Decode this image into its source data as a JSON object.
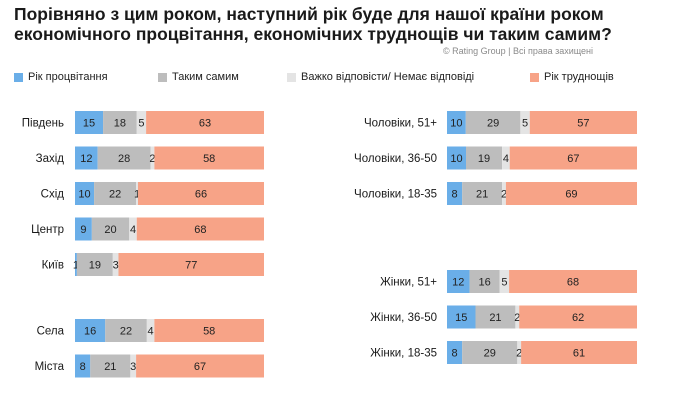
{
  "header": {
    "title": "Порівняно з цим роком, наступний рік буде для нашої країни роком економічного процвітання, економічних труднощів чи таким самим?",
    "credit": "© Rating Group | Всі права захищені"
  },
  "colors": {
    "prosperity": "#6aaee8",
    "same": "#bdbdbd",
    "hard_to_say": "#e4e4e4",
    "difficulties": "#f7a387"
  },
  "chart_data": {
    "type": "bar",
    "orientation": "horizontal",
    "stacked": true,
    "xlim": [
      0,
      100
    ],
    "legend_placement": "top",
    "series_names": [
      "Рік процвітання",
      "Таким самим",
      "Важко відповісти/ Немає відповіді",
      "Рік труднощів"
    ],
    "groups": [
      {
        "panel": "left",
        "rows": [
          {
            "label": "Південь",
            "values": [
              15,
              18,
              5,
              63
            ]
          },
          {
            "label": "Захід",
            "values": [
              12,
              28,
              2,
              58
            ]
          },
          {
            "label": "Схід",
            "values": [
              10,
              22,
              1,
              66
            ]
          },
          {
            "label": "Центр",
            "values": [
              9,
              20,
              4,
              68
            ]
          },
          {
            "label": "Київ",
            "values": [
              1,
              19,
              3,
              77
            ]
          }
        ]
      },
      {
        "panel": "left",
        "rows": [
          {
            "label": "Села",
            "values": [
              16,
              22,
              4,
              58
            ]
          },
          {
            "label": "Міста",
            "values": [
              8,
              21,
              3,
              67
            ]
          }
        ]
      },
      {
        "panel": "right",
        "rows": [
          {
            "label": "Чоловіки, 51+",
            "values": [
              10,
              29,
              5,
              57
            ]
          },
          {
            "label": "Чоловіки, 36-50",
            "values": [
              10,
              19,
              4,
              67
            ]
          },
          {
            "label": "Чоловіки, 18-35",
            "values": [
              8,
              21,
              2,
              69
            ]
          }
        ]
      },
      {
        "panel": "right",
        "rows": [
          {
            "label": "Жінки, 51+",
            "values": [
              12,
              16,
              5,
              68
            ]
          },
          {
            "label": "Жінки, 36-50",
            "values": [
              15,
              21,
              2,
              62
            ]
          },
          {
            "label": "Жінки, 18-35",
            "values": [
              8,
              29,
              2,
              61
            ]
          }
        ]
      }
    ]
  }
}
